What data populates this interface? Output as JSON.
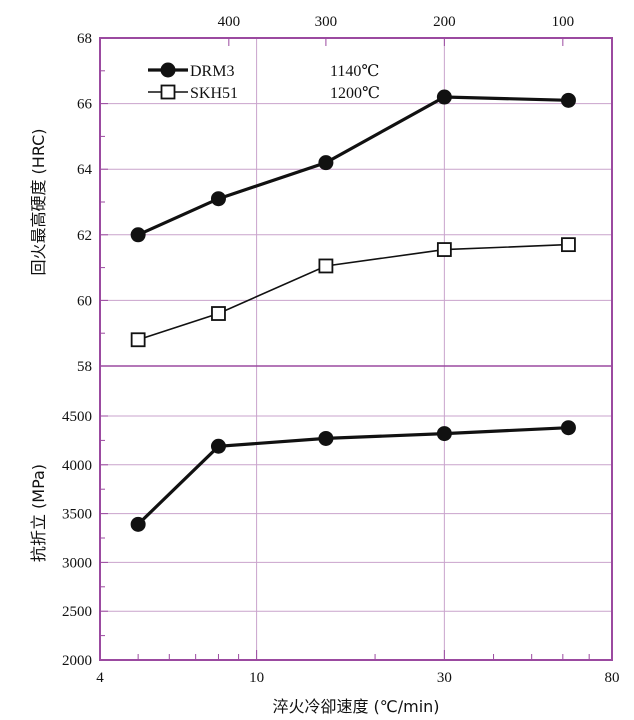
{
  "chart_data": [
    {
      "type": "line",
      "panel": "upper",
      "x_scale": "log",
      "xlim": [
        4,
        80
      ],
      "x_ticks": [
        4,
        10,
        30,
        80
      ],
      "top_axis_ticks": [
        {
          "x": 8.5,
          "label": "400"
        },
        {
          "x": 15,
          "label": "300"
        },
        {
          "x": 30,
          "label": "200"
        },
        {
          "x": 60,
          "label": "100"
        }
      ],
      "ylabel": "回火最高硬度 (HRC)",
      "ylim": [
        58,
        68
      ],
      "y_ticks": [
        58,
        60,
        62,
        64,
        66,
        68
      ],
      "grid": true,
      "legend_position": "top-left",
      "series": [
        {
          "name": "DRM3",
          "legend_note": "1140℃",
          "marker": "filled-circle",
          "x": [
            5,
            8,
            15,
            30,
            62
          ],
          "y": [
            62.0,
            63.1,
            64.2,
            66.2,
            66.1
          ]
        },
        {
          "name": "SKH51",
          "legend_note": "1200℃",
          "marker": "open-square",
          "x": [
            5,
            8,
            15,
            30,
            62
          ],
          "y": [
            58.8,
            59.6,
            61.05,
            61.55,
            61.7
          ]
        }
      ]
    },
    {
      "type": "line",
      "panel": "lower",
      "x_scale": "log",
      "xlim": [
        4,
        80
      ],
      "x_ticks": [
        4,
        10,
        30,
        80
      ],
      "xlabel": "淬火冷卻速度 (℃/min)",
      "ylabel": "抗折立 (MPa)",
      "ylim": [
        2000,
        4500
      ],
      "y_ticks": [
        2000,
        2500,
        3000,
        3500,
        4000,
        4500
      ],
      "grid": true,
      "series": [
        {
          "marker": "filled-circle",
          "x": [
            5,
            8,
            15,
            30,
            62
          ],
          "y": [
            3390,
            4190,
            4270,
            4320,
            4380
          ]
        }
      ]
    }
  ]
}
